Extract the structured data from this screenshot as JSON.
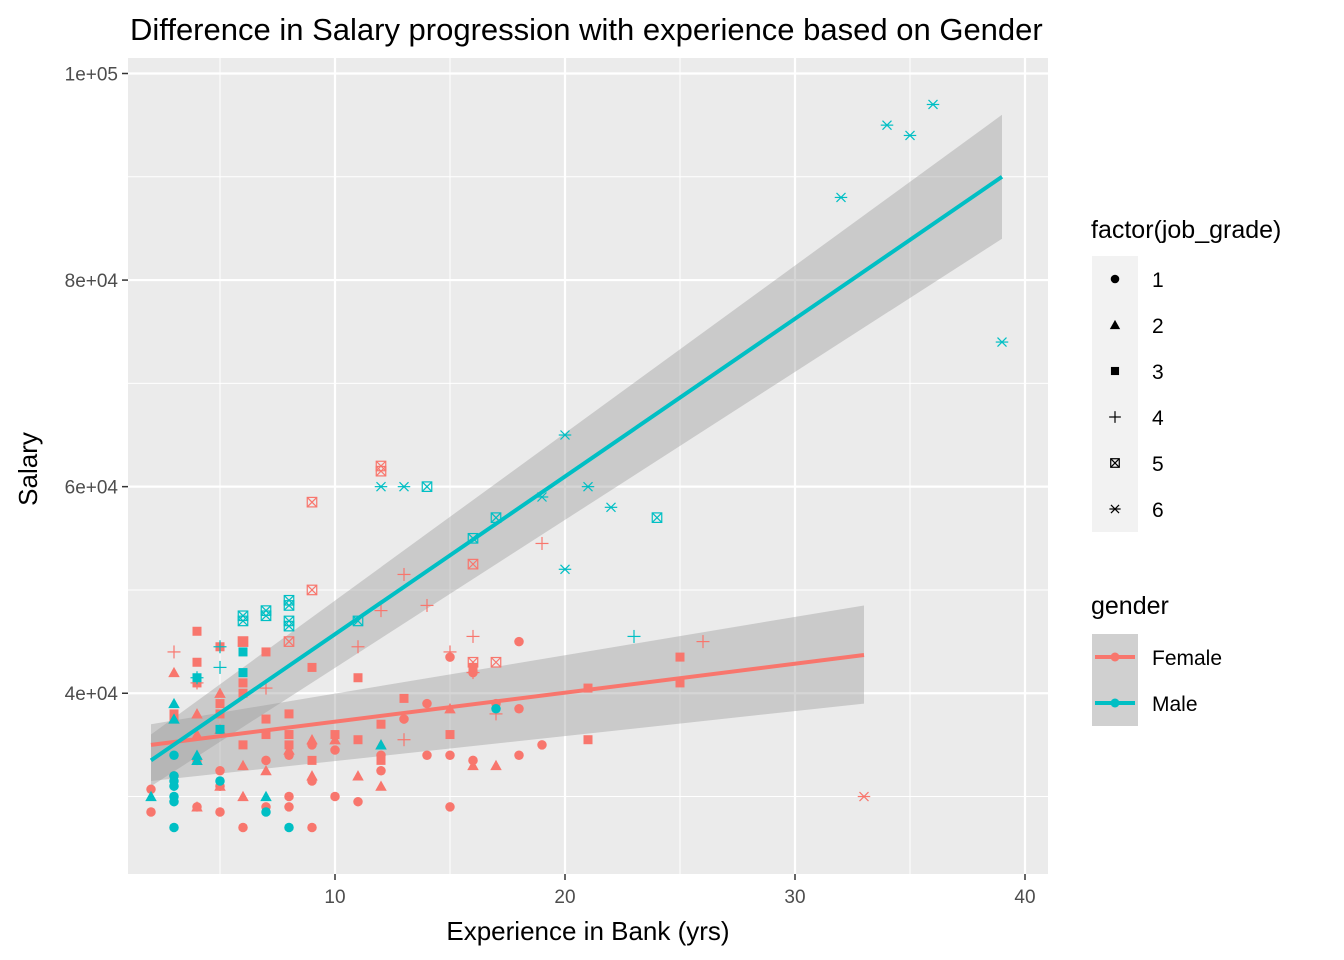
{
  "chart_data": {
    "type": "scatter",
    "title": "Difference in Salary progression with experience based on Gender",
    "xlabel": "Experience in Bank (yrs)",
    "ylabel": "Salary",
    "xlim": [
      1,
      41
    ],
    "ylim": [
      22500,
      101500
    ],
    "x_ticks": [
      10,
      20,
      30,
      40
    ],
    "x_tick_labels": [
      "10",
      "20",
      "30",
      "40"
    ],
    "y_ticks": [
      40000,
      60000,
      80000,
      100000
    ],
    "y_tick_labels": [
      "4e+04",
      "6e+04",
      "8e+04",
      "1e+05"
    ],
    "grid": true,
    "legend_position": "right",
    "shape_legend": {
      "title": "factor(job_grade)",
      "levels": [
        "1",
        "2",
        "3",
        "4",
        "5",
        "6"
      ]
    },
    "color_legend": {
      "title": "gender",
      "levels": [
        {
          "label": "Female",
          "color": "#F8766D"
        },
        {
          "label": "Male",
          "color": "#00BFC4"
        }
      ]
    },
    "trend_lines": [
      {
        "group": "Female",
        "x": [
          2,
          33
        ],
        "y": [
          35000,
          43700
        ],
        "band_lower": [
          31500,
          39000
        ],
        "band_upper": [
          37000,
          48500
        ]
      },
      {
        "group": "Male",
        "x": [
          2,
          39
        ],
        "y": [
          33500,
          90000
        ],
        "band_lower": [
          31000,
          84000
        ],
        "band_upper": [
          36000,
          96000
        ]
      }
    ],
    "series": [
      {
        "gender": "Female",
        "grade": "1",
        "points": [
          [
            2,
            30700
          ],
          [
            2,
            28500
          ],
          [
            3,
            32000
          ],
          [
            4,
            33500
          ],
          [
            4,
            29000
          ],
          [
            5,
            32500
          ],
          [
            5,
            31000
          ],
          [
            5,
            28500
          ],
          [
            6,
            27000
          ],
          [
            7,
            29000
          ],
          [
            7,
            33500
          ],
          [
            8,
            34000
          ],
          [
            8,
            30000
          ],
          [
            8,
            29000
          ],
          [
            9,
            35000
          ],
          [
            9,
            31500
          ],
          [
            9,
            27000
          ],
          [
            10,
            34500
          ],
          [
            10,
            30000
          ],
          [
            11,
            29500
          ],
          [
            12,
            34000
          ],
          [
            12,
            32500
          ],
          [
            13,
            37500
          ],
          [
            14,
            39000
          ],
          [
            14,
            34000
          ],
          [
            15,
            34000
          ],
          [
            15,
            29000
          ],
          [
            15,
            43500
          ],
          [
            16,
            33500
          ],
          [
            16,
            42000
          ],
          [
            17,
            39000
          ],
          [
            18,
            45000
          ],
          [
            18,
            38500
          ],
          [
            18,
            34000
          ],
          [
            19,
            35000
          ]
        ]
      },
      {
        "gender": "Female",
        "grade": "2",
        "points": [
          [
            3,
            42000
          ],
          [
            4,
            38000
          ],
          [
            4,
            36000
          ],
          [
            4,
            29000
          ],
          [
            5,
            40000
          ],
          [
            5,
            36500
          ],
          [
            5,
            31000
          ],
          [
            6,
            33000
          ],
          [
            6,
            30000
          ],
          [
            7,
            32500
          ],
          [
            8,
            34500
          ],
          [
            9,
            35500
          ],
          [
            9,
            32000
          ],
          [
            10,
            35500
          ],
          [
            11,
            32000
          ],
          [
            12,
            35000
          ],
          [
            12,
            31000
          ],
          [
            15,
            38500
          ],
          [
            16,
            33000
          ],
          [
            17,
            33000
          ]
        ]
      },
      {
        "gender": "Female",
        "grade": "3",
        "points": [
          [
            3,
            37500
          ],
          [
            3,
            38000
          ],
          [
            4,
            46000
          ],
          [
            4,
            43000
          ],
          [
            4,
            41000
          ],
          [
            5,
            44500
          ],
          [
            5,
            39000
          ],
          [
            5,
            38000
          ],
          [
            6,
            45000
          ],
          [
            6,
            41000
          ],
          [
            6,
            40000
          ],
          [
            6,
            35000
          ],
          [
            7,
            44000
          ],
          [
            7,
            37500
          ],
          [
            7,
            36000
          ],
          [
            8,
            38000
          ],
          [
            8,
            36000
          ],
          [
            8,
            35000
          ],
          [
            9,
            42500
          ],
          [
            9,
            33500
          ],
          [
            10,
            36000
          ],
          [
            11,
            41500
          ],
          [
            11,
            35500
          ],
          [
            12,
            37000
          ],
          [
            12,
            33500
          ],
          [
            13,
            39500
          ],
          [
            15,
            36000
          ],
          [
            16,
            42500
          ],
          [
            21,
            35500
          ],
          [
            21,
            40500
          ],
          [
            25,
            43500
          ],
          [
            25,
            41000
          ]
        ]
      },
      {
        "gender": "Female",
        "grade": "4",
        "points": [
          [
            3,
            44000
          ],
          [
            4,
            41000
          ],
          [
            7,
            40500
          ],
          [
            13,
            51500
          ],
          [
            12,
            48000
          ],
          [
            11,
            44500
          ],
          [
            13,
            35500
          ],
          [
            14,
            48500
          ],
          [
            15,
            44000
          ],
          [
            16,
            45500
          ],
          [
            16,
            42000
          ],
          [
            17,
            38000
          ],
          [
            19,
            54500
          ],
          [
            26,
            45000
          ]
        ]
      },
      {
        "gender": "Female",
        "grade": "5",
        "points": [
          [
            9,
            58500
          ],
          [
            9,
            50000
          ],
          [
            12,
            62000
          ],
          [
            12,
            61500
          ],
          [
            16,
            52500
          ],
          [
            16,
            43000
          ],
          [
            17,
            43000
          ],
          [
            8,
            45000
          ],
          [
            6,
            45000
          ]
        ]
      },
      {
        "gender": "Female",
        "grade": "6",
        "points": [
          [
            33,
            30000
          ]
        ]
      },
      {
        "gender": "Male",
        "grade": "1",
        "points": [
          [
            3,
            27000
          ],
          [
            3,
            29500
          ],
          [
            3,
            30000
          ],
          [
            3,
            31000
          ],
          [
            3,
            31500
          ],
          [
            3,
            32000
          ],
          [
            3,
            34000
          ],
          [
            5,
            31500
          ],
          [
            7,
            28500
          ],
          [
            8,
            27000
          ],
          [
            17,
            38500
          ]
        ]
      },
      {
        "gender": "Male",
        "grade": "2",
        "points": [
          [
            2,
            30000
          ],
          [
            3,
            39000
          ],
          [
            3,
            37500
          ],
          [
            4,
            34000
          ],
          [
            4,
            33500
          ],
          [
            7,
            30000
          ],
          [
            12,
            35000
          ]
        ]
      },
      {
        "gender": "Male",
        "grade": "3",
        "points": [
          [
            4,
            41500
          ],
          [
            5,
            36500
          ],
          [
            6,
            44000
          ],
          [
            6,
            42000
          ]
        ]
      },
      {
        "gender": "Male",
        "grade": "4",
        "points": [
          [
            4,
            41500
          ],
          [
            5,
            44500
          ],
          [
            5,
            42500
          ],
          [
            23,
            45500
          ]
        ]
      },
      {
        "gender": "Male",
        "grade": "5",
        "points": [
          [
            6,
            47500
          ],
          [
            6,
            47000
          ],
          [
            7,
            48000
          ],
          [
            7,
            47500
          ],
          [
            8,
            49000
          ],
          [
            8,
            48500
          ],
          [
            8,
            47000
          ],
          [
            8,
            46500
          ],
          [
            11,
            47000
          ],
          [
            14,
            60000
          ],
          [
            16,
            55000
          ],
          [
            17,
            57000
          ],
          [
            24,
            57000
          ]
        ]
      },
      {
        "gender": "Male",
        "grade": "6",
        "points": [
          [
            12,
            60000
          ],
          [
            13,
            60000
          ],
          [
            19,
            59000
          ],
          [
            20,
            65000
          ],
          [
            20,
            52000
          ],
          [
            21,
            60000
          ],
          [
            22,
            58000
          ],
          [
            32,
            88000
          ],
          [
            34,
            95000
          ],
          [
            35,
            94000
          ],
          [
            36,
            97000
          ],
          [
            39,
            74000
          ]
        ]
      }
    ]
  }
}
